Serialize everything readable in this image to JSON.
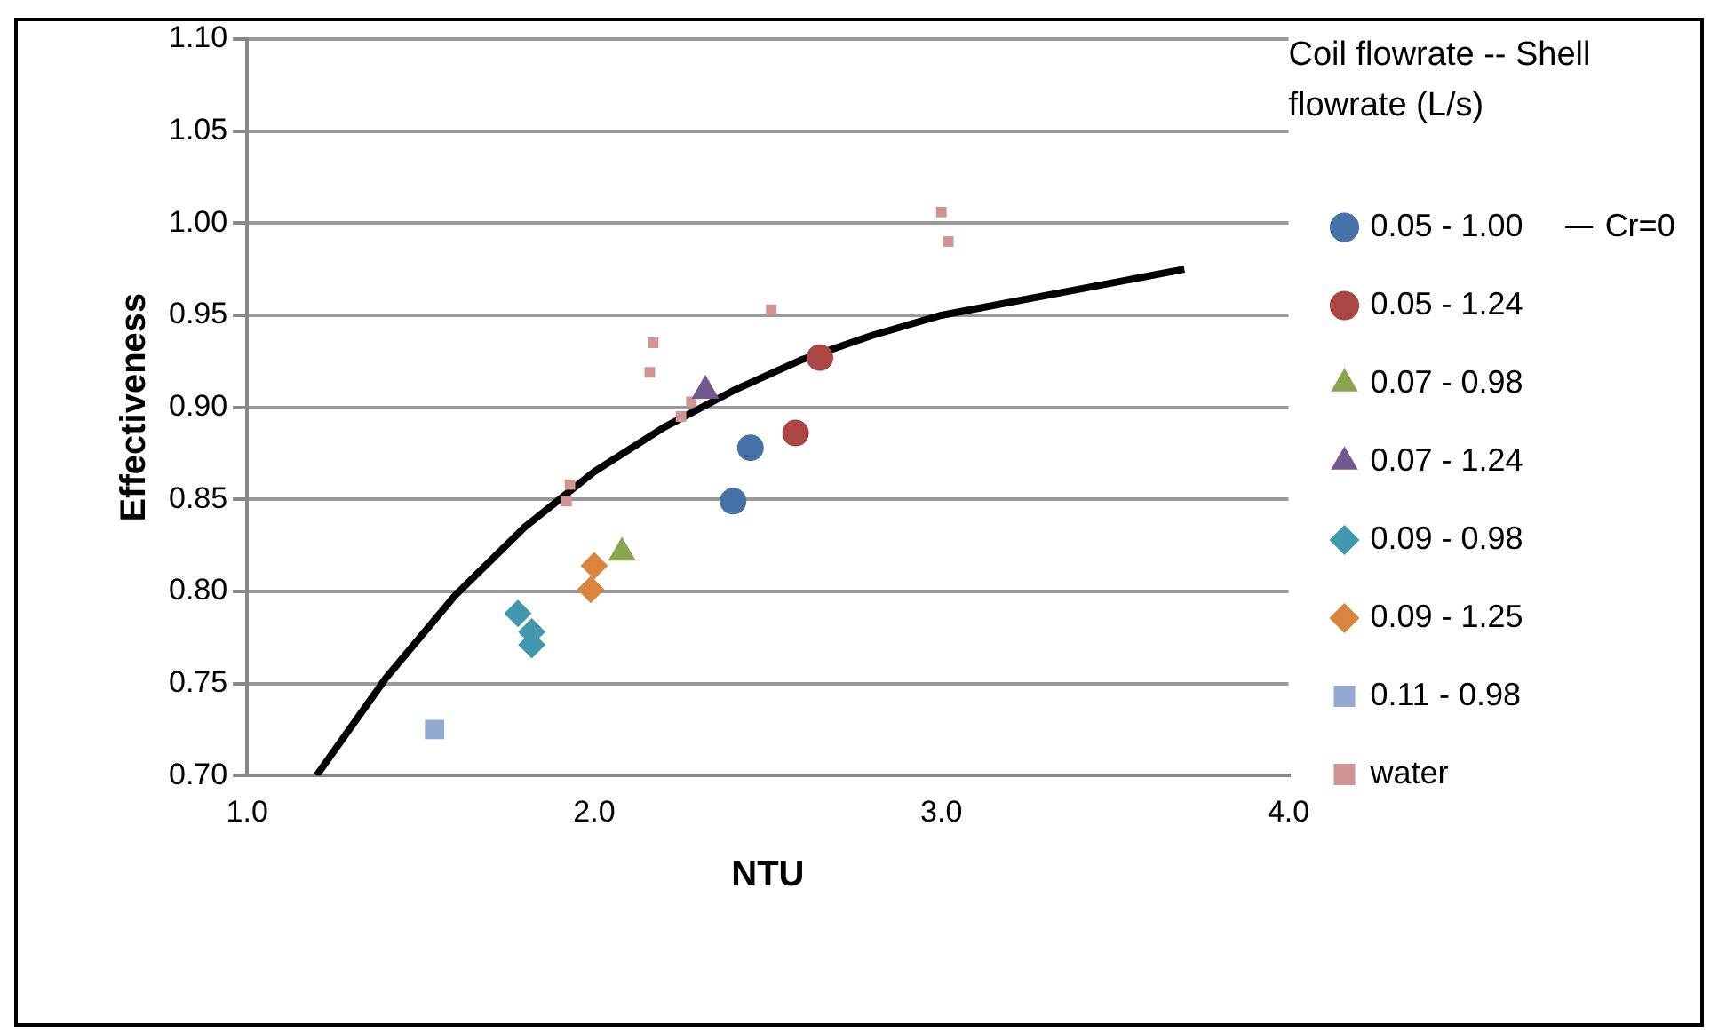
{
  "chart_data": {
    "type": "scatter",
    "xlabel": "NTU",
    "ylabel": "Effectiveness",
    "legend_title": "Coil flowrate -- Shell flowrate (L/s)",
    "legend": "right",
    "grid": "y",
    "xlim": [
      1.0,
      4.0
    ],
    "xticks": [
      {
        "value": 1,
        "label": "1.0"
      },
      {
        "value": 2,
        "label": "2.0"
      },
      {
        "value": 3,
        "label": "3.0"
      },
      {
        "value": 4,
        "label": "4.0"
      }
    ],
    "ylim": [
      0.7,
      1.1
    ],
    "yticks": [
      {
        "value": 0.7,
        "label": "0.70"
      },
      {
        "value": 0.75,
        "label": "0.75"
      },
      {
        "value": 0.8,
        "label": "0.80"
      },
      {
        "value": 0.85,
        "label": "0.85"
      },
      {
        "value": 0.9,
        "label": "0.90"
      },
      {
        "value": 0.95,
        "label": "0.95"
      },
      {
        "value": 1.0,
        "label": "1.00"
      },
      {
        "value": 1.05,
        "label": "1.05"
      },
      {
        "value": 1.1,
        "label": "1.10"
      }
    ],
    "series": [
      {
        "name": "0.05 - 1.00",
        "color": "#4572a7",
        "marker": "circle",
        "x": [
          2.4,
          2.45
        ],
        "values": [
          0.849,
          0.878
        ]
      },
      {
        "name": "0.05 - 1.24",
        "color": "#aa4643",
        "marker": "circle",
        "x": [
          2.58,
          2.65
        ],
        "values": [
          0.886,
          0.927
        ]
      },
      {
        "name": "0.07 - 0.98",
        "color": "#89a54e",
        "marker": "triangle",
        "x": [
          2.08
        ],
        "values": [
          0.821
        ]
      },
      {
        "name": "0.07 - 1.24",
        "color": "#71588f",
        "marker": "triangle",
        "x": [
          2.32
        ],
        "values": [
          0.909
        ]
      },
      {
        "name": "0.09 - 0.98",
        "color": "#4198af",
        "marker": "diamond",
        "x": [
          1.78,
          1.82,
          1.82
        ],
        "values": [
          0.788,
          0.778,
          0.771
        ]
      },
      {
        "name": "0.09 - 1.25",
        "color": "#db843d",
        "marker": "diamond",
        "x": [
          2.0,
          1.99
        ],
        "values": [
          0.814,
          0.801
        ]
      },
      {
        "name": "0.11 - 0.98",
        "color": "#93a9cf",
        "marker": "square",
        "x": [
          1.54
        ],
        "values": [
          0.725
        ]
      },
      {
        "name": "water",
        "color": "#d09493",
        "x": [
          3.0,
          3.02,
          2.17,
          2.16,
          2.28,
          2.25,
          1.93,
          1.92,
          2.51
        ],
        "values": [
          1.006,
          0.99,
          0.935,
          0.919,
          0.903,
          0.895,
          0.858,
          0.849,
          0.953
        ]
      },
      {
        "name": "Cr=0",
        "type": "line",
        "color": "#000000",
        "marker": "none",
        "line_style": "solid",
        "x": [
          1.2,
          1.4,
          1.6,
          1.8,
          2.0,
          2.2,
          2.4,
          2.6,
          2.8,
          3.0,
          3.7
        ],
        "values": [
          0.7,
          0.753,
          0.798,
          0.835,
          0.865,
          0.889,
          0.909,
          0.926,
          0.939,
          0.95,
          0.975
        ]
      }
    ]
  }
}
